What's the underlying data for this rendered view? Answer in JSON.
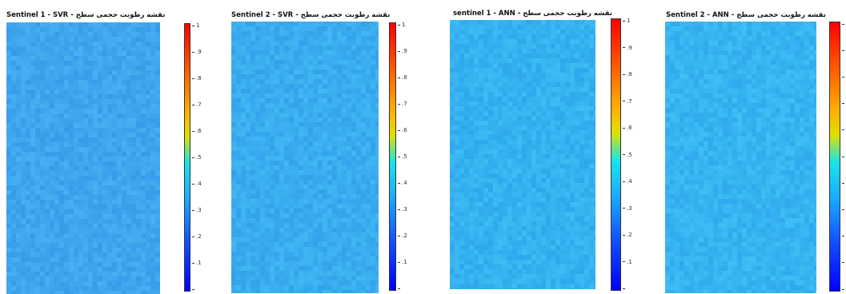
{
  "chart_data": [
    {
      "type": "heatmap",
      "title_latin": "Sentinel 1 - SVR",
      "title_persian": "نقشه رطوبت حجمی سطح",
      "colorbar": {
        "min": 0,
        "max": 1,
        "tick_labels": [
          "1",
          ".9",
          ".8",
          ".7",
          ".6",
          ".5",
          ".4",
          ".3",
          ".2",
          ".1",
          ""
        ]
      },
      "value_mean": 0.33,
      "base_color": "#3fa6ee"
    },
    {
      "type": "heatmap",
      "title_latin": "Sentinel 2 - SVR",
      "title_persian": "نقشه رطوبت حجمی سطح",
      "colorbar": {
        "min": 0,
        "max": 1,
        "tick_labels": [
          "1",
          ".9",
          ".8",
          ".7",
          ".6",
          ".5",
          ".4",
          ".3",
          ".2",
          ".1",
          ""
        ]
      },
      "value_mean": 0.34,
      "base_color": "#3aacef"
    },
    {
      "type": "heatmap",
      "title_latin": "sentinel 1 - ANN",
      "title_persian": "نقشه رطوبت حجمی سطح",
      "colorbar": {
        "min": 0,
        "max": 1,
        "tick_labels": [
          "1",
          ".9",
          ".8",
          ".7",
          ".6",
          ".5",
          ".4",
          ".3",
          ".2",
          ".1",
          ""
        ]
      },
      "value_mean": 0.36,
      "base_color": "#35b2f0"
    },
    {
      "type": "heatmap",
      "title_latin": "Sentinel 2 - ANN",
      "title_persian": "نقشه رطوبت حجمی سطح",
      "colorbar": {
        "min": 0,
        "max": 1,
        "tick_labels": [
          "",
          "",
          "",
          "",
          "",
          "",
          "",
          "",
          "",
          "",
          ""
        ]
      },
      "value_mean": 0.36,
      "base_color": "#37b4f1"
    }
  ]
}
